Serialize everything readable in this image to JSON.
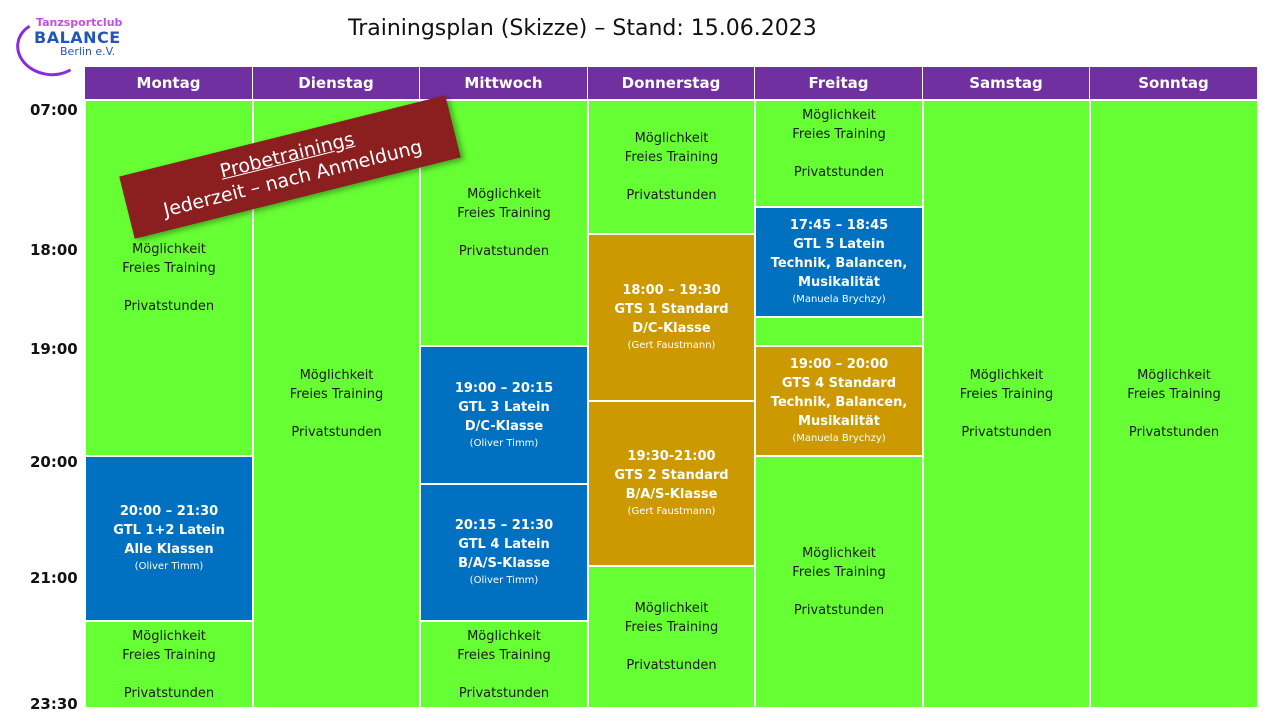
{
  "logo": {
    "top": "Tanzsportclub",
    "mid": "BALANCE",
    "bot": "Berlin e.V."
  },
  "title": "Trainingsplan (Skizze) – Stand: 15.06.2023",
  "days": [
    "Montag",
    "Dienstag",
    "Mittwoch",
    "Donnerstag",
    "Freitag",
    "Samstag",
    "Sonntag"
  ],
  "times": [
    "07:00",
    "18:00",
    "19:00",
    "20:00",
    "21:00",
    "23:30"
  ],
  "free_block": {
    "line1": "Möglichkeit",
    "line2": "Freies Training",
    "line3": "Privatstunden"
  },
  "banner": {
    "line1": "Probetrainings",
    "line2": "Jederzeit – nach Anmeldung"
  },
  "classes": {
    "mon_gtl12": {
      "time": "20:00 – 21:30",
      "name": "GTL 1+2 Latein",
      "level": "Alle Klassen",
      "trainer": "(Oliver Timm)"
    },
    "wed_gtl3": {
      "time": "19:00 – 20:15",
      "name": "GTL 3 Latein",
      "level": "D/C-Klasse",
      "trainer": "(Oliver Timm)"
    },
    "wed_gtl4": {
      "time": "20:15 – 21:30",
      "name": "GTL 4 Latein",
      "level": "B/A/S-Klasse",
      "trainer": "(Oliver Timm)"
    },
    "thu_gts1": {
      "time": "18:00 – 19:30",
      "name": "GTS 1 Standard",
      "level": "D/C-Klasse",
      "trainer": "(Gert Faustmann)"
    },
    "thu_gts2": {
      "time": "19:30-21:00",
      "name": "GTS 2 Standard",
      "level": "B/A/S-Klasse",
      "trainer": "(Gert Faustmann)"
    },
    "fri_gtl5": {
      "time": "17:45 – 18:45",
      "name": "GTL 5 Latein",
      "level1": "Technik, Balancen,",
      "level2": "Musikalität",
      "trainer": "(Manuela Brychzy)"
    },
    "fri_gts4": {
      "time": "19:00 – 20:00",
      "name": "GTS 4 Standard",
      "level1": "Technik, Balancen,",
      "level2": "Musikalität",
      "trainer": "(Manuela Brychzy)"
    }
  },
  "colors": {
    "header": "#7030a0",
    "free": "#66ff33",
    "latin": "#0070c0",
    "standard": "#cc9900",
    "banner": "#8b1e1e"
  }
}
